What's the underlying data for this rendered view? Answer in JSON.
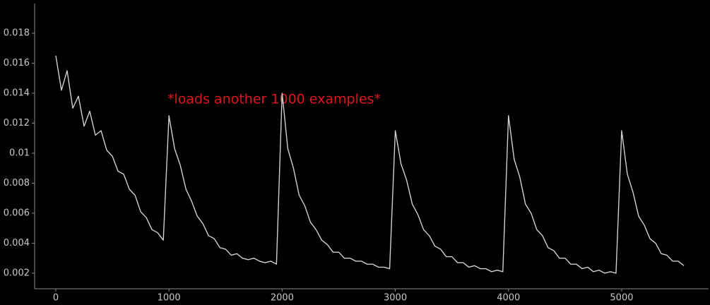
{
  "chart_data": {
    "type": "line",
    "annotation": "*loads another 1000 examples*",
    "annotation_color": "#e0141e",
    "background": "#000000",
    "axis_color": "#8a8a8a",
    "x": [
      0,
      50,
      100,
      150,
      200,
      250,
      300,
      350,
      400,
      450,
      500,
      550,
      600,
      650,
      700,
      750,
      800,
      850,
      900,
      950,
      1000,
      1050,
      1100,
      1150,
      1200,
      1250,
      1300,
      1350,
      1400,
      1450,
      1500,
      1550,
      1600,
      1650,
      1700,
      1750,
      1800,
      1850,
      1900,
      1950,
      2000,
      2050,
      2100,
      2150,
      2200,
      2250,
      2300,
      2350,
      2400,
      2450,
      2500,
      2550,
      2600,
      2650,
      2700,
      2750,
      2800,
      2850,
      2900,
      2950,
      3000,
      3050,
      3100,
      3150,
      3200,
      3250,
      3300,
      3350,
      3400,
      3450,
      3500,
      3550,
      3600,
      3650,
      3700,
      3750,
      3800,
      3850,
      3900,
      3950,
      4000,
      4050,
      4100,
      4150,
      4200,
      4250,
      4300,
      4350,
      4400,
      4450,
      4500,
      4550,
      4600,
      4650,
      4700,
      4750,
      4800,
      4850,
      4900,
      4950,
      5000,
      5050,
      5100,
      5150,
      5200,
      5250,
      5300,
      5350,
      5400,
      5450,
      5500,
      5550
    ],
    "series": [
      {
        "color": "#d0d0d0",
        "values": [
          0.0165,
          0.0142,
          0.0155,
          0.013,
          0.0138,
          0.0118,
          0.0128,
          0.0112,
          0.0115,
          0.0102,
          0.0098,
          0.0088,
          0.0086,
          0.0076,
          0.0072,
          0.0061,
          0.0057,
          0.0049,
          0.0047,
          0.0042,
          0.0125,
          0.0103,
          0.0092,
          0.0076,
          0.0068,
          0.0058,
          0.0053,
          0.0045,
          0.0043,
          0.0037,
          0.0036,
          0.0032,
          0.0033,
          0.003,
          0.0029,
          0.003,
          0.0028,
          0.0027,
          0.0028,
          0.0026,
          0.014,
          0.0103,
          0.009,
          0.0072,
          0.0065,
          0.0054,
          0.0049,
          0.0042,
          0.0039,
          0.0034,
          0.0034,
          0.003,
          0.003,
          0.0028,
          0.0028,
          0.0026,
          0.0026,
          0.0024,
          0.0024,
          0.0023,
          0.0115,
          0.0093,
          0.0082,
          0.0066,
          0.0059,
          0.0049,
          0.0045,
          0.0038,
          0.0036,
          0.0031,
          0.0031,
          0.0027,
          0.0027,
          0.0024,
          0.0025,
          0.0023,
          0.0023,
          0.0021,
          0.0022,
          0.0021,
          0.0125,
          0.0096,
          0.0084,
          0.0066,
          0.006,
          0.0049,
          0.0045,
          0.0037,
          0.0035,
          0.003,
          0.003,
          0.0026,
          0.0026,
          0.0023,
          0.0024,
          0.0021,
          0.0022,
          0.002,
          0.0021,
          0.002,
          0.0115,
          0.0086,
          0.0074,
          0.0058,
          0.0052,
          0.0043,
          0.004,
          0.0033,
          0.0032,
          0.0028,
          0.0028,
          0.0025
        ]
      }
    ],
    "xlim": [
      -187,
      5768
    ],
    "xticks": [
      0,
      1000,
      2000,
      3000,
      4000,
      5000
    ],
    "ylim": [
      0.00096,
      0.01998
    ],
    "yticks": [
      0.002,
      0.004,
      0.006,
      0.008,
      0.01,
      0.012,
      0.014,
      0.016,
      0.018
    ]
  }
}
